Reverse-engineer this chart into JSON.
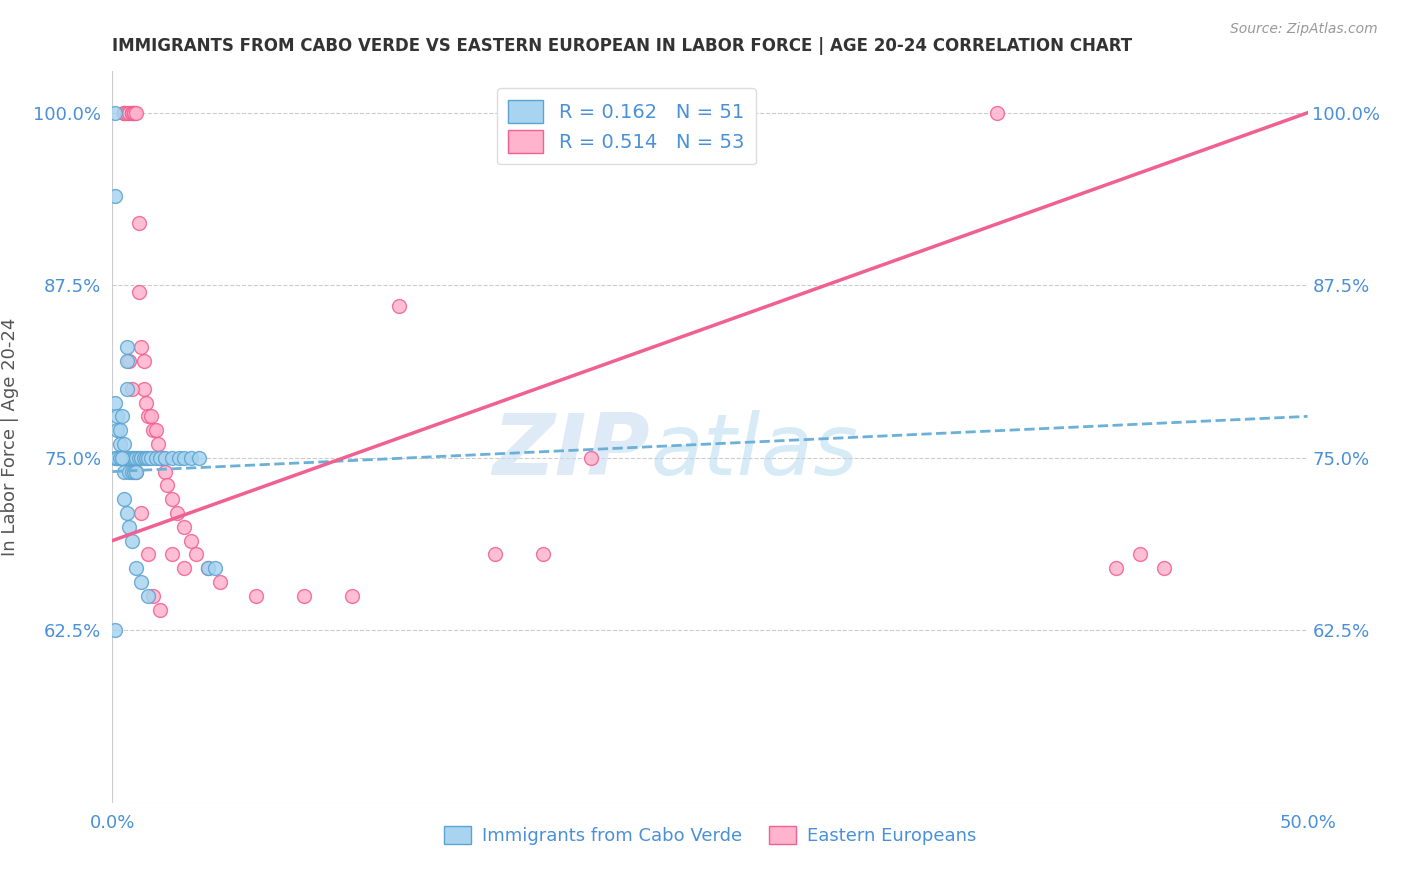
{
  "title": "IMMIGRANTS FROM CABO VERDE VS EASTERN EUROPEAN IN LABOR FORCE | AGE 20-24 CORRELATION CHART",
  "source": "Source: ZipAtlas.com",
  "ylabel": "In Labor Force | Age 20-24",
  "xmin": 0.0,
  "xmax": 0.5,
  "ymin": 0.5,
  "ymax": 1.03,
  "yticks": [
    0.625,
    0.75,
    0.875,
    1.0
  ],
  "ytick_labels": [
    "62.5%",
    "75.0%",
    "87.5%",
    "100.0%"
  ],
  "xticks": [
    0.0,
    0.05,
    0.1,
    0.15,
    0.2,
    0.25,
    0.3,
    0.35,
    0.4,
    0.45,
    0.5
  ],
  "xtick_labels": [
    "0.0%",
    "",
    "",
    "",
    "",
    "",
    "",
    "",
    "",
    "",
    "50.0%"
  ],
  "cabo_verde_R": 0.162,
  "cabo_verde_N": 51,
  "eastern_euro_R": 0.514,
  "eastern_euro_N": 53,
  "cabo_verde_color": "#a8d4f0",
  "eastern_euro_color": "#ffb3cc",
  "cabo_verde_edge_color": "#5ba3d0",
  "eastern_euro_edge_color": "#f06090",
  "cabo_verde_line_color": "#6ab0d8",
  "eastern_euro_line_color": "#f06090",
  "watermark_zip": "ZIP",
  "watermark_atlas": "atlas",
  "cabo_verde_x": [
    0.001,
    0.001,
    0.001,
    0.002,
    0.002,
    0.002,
    0.003,
    0.003,
    0.004,
    0.004,
    0.005,
    0.005,
    0.006,
    0.006,
    0.006,
    0.007,
    0.007,
    0.008,
    0.008,
    0.009,
    0.009,
    0.01,
    0.01,
    0.011,
    0.012,
    0.013,
    0.014,
    0.015,
    0.016,
    0.018,
    0.02,
    0.022,
    0.025,
    0.028,
    0.03,
    0.033,
    0.036,
    0.04,
    0.043,
    0.001,
    0.002,
    0.003,
    0.004,
    0.005,
    0.006,
    0.007,
    0.008,
    0.01,
    0.012,
    0.015,
    0.001
  ],
  "cabo_verde_y": [
    1.0,
    0.94,
    0.79,
    0.78,
    0.77,
    0.75,
    0.77,
    0.76,
    0.78,
    0.75,
    0.76,
    0.74,
    0.83,
    0.82,
    0.8,
    0.75,
    0.74,
    0.75,
    0.74,
    0.75,
    0.74,
    0.75,
    0.74,
    0.75,
    0.75,
    0.75,
    0.75,
    0.75,
    0.75,
    0.75,
    0.75,
    0.75,
    0.75,
    0.75,
    0.75,
    0.75,
    0.75,
    0.67,
    0.67,
    0.75,
    0.75,
    0.75,
    0.75,
    0.72,
    0.71,
    0.7,
    0.69,
    0.67,
    0.66,
    0.65,
    0.625
  ],
  "eastern_euro_x": [
    0.005,
    0.005,
    0.005,
    0.006,
    0.007,
    0.008,
    0.008,
    0.009,
    0.009,
    0.01,
    0.011,
    0.011,
    0.012,
    0.013,
    0.013,
    0.014,
    0.015,
    0.016,
    0.017,
    0.018,
    0.019,
    0.02,
    0.021,
    0.022,
    0.023,
    0.025,
    0.027,
    0.03,
    0.033,
    0.035,
    0.04,
    0.045,
    0.06,
    0.08,
    0.1,
    0.12,
    0.16,
    0.18,
    0.005,
    0.007,
    0.008,
    0.01,
    0.012,
    0.015,
    0.017,
    0.02,
    0.025,
    0.03,
    0.37,
    0.42,
    0.43,
    0.44,
    0.2
  ],
  "eastern_euro_y": [
    1.0,
    1.0,
    1.0,
    1.0,
    1.0,
    1.0,
    1.0,
    1.0,
    1.0,
    1.0,
    0.92,
    0.87,
    0.83,
    0.82,
    0.8,
    0.79,
    0.78,
    0.78,
    0.77,
    0.77,
    0.76,
    0.75,
    0.75,
    0.74,
    0.73,
    0.72,
    0.71,
    0.7,
    0.69,
    0.68,
    0.67,
    0.66,
    0.65,
    0.65,
    0.65,
    0.86,
    0.68,
    0.68,
    0.75,
    0.82,
    0.8,
    0.74,
    0.71,
    0.68,
    0.65,
    0.64,
    0.68,
    0.67,
    1.0,
    0.67,
    0.68,
    0.67,
    0.75
  ],
  "cv_line_x": [
    0.0,
    0.5
  ],
  "cv_line_y": [
    0.74,
    0.78
  ],
  "ee_line_x": [
    0.0,
    0.5
  ],
  "ee_line_y": [
    0.69,
    1.0
  ]
}
